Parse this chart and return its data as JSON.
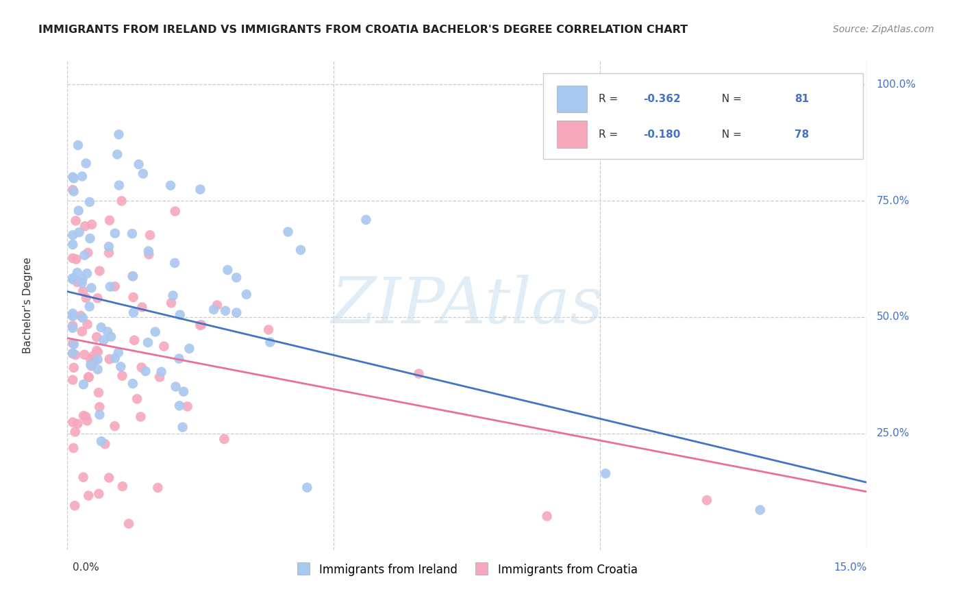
{
  "title": "IMMIGRANTS FROM IRELAND VS IMMIGRANTS FROM CROATIA BACHELOR'S DEGREE CORRELATION CHART",
  "source": "Source: ZipAtlas.com",
  "ylabel": "Bachelor's Degree",
  "xlim": [
    0.0,
    0.15
  ],
  "ylim": [
    0.0,
    1.05
  ],
  "ireland_color": "#A8C8F0",
  "croatia_color": "#F5A8BC",
  "ireland_line_color": "#4472C4",
  "croatia_line_color": "#E8709A",
  "ireland_R": -0.362,
  "ireland_N": 81,
  "croatia_R": -0.18,
  "croatia_N": 78,
  "watermark": "ZIPAtlas",
  "legend_label_ireland": "Immigrants from Ireland",
  "legend_label_croatia": "Immigrants from Croatia"
}
